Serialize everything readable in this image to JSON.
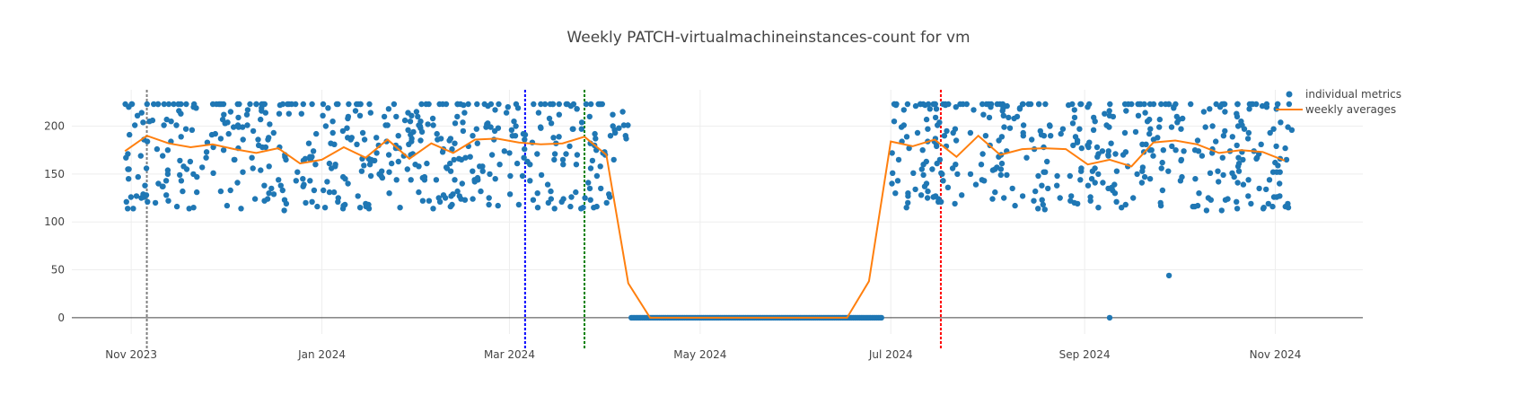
{
  "chart_data": {
    "type": "scatter",
    "title": "Weekly PATCH-virtualmachineinstances-count for vm",
    "xlabel": "",
    "ylabel": "",
    "x_range": [
      "2023-10-13",
      "2024-11-29"
    ],
    "ylim": [
      -17,
      238
    ],
    "y_ticks": [
      0,
      50,
      100,
      150,
      200
    ],
    "x_ticks": [
      {
        "date": "2023-11-01",
        "label": "Nov 2023"
      },
      {
        "date": "2024-01-01",
        "label": "Jan 2024"
      },
      {
        "date": "2024-03-01",
        "label": "Mar 2024"
      },
      {
        "date": "2024-05-01",
        "label": "May 2024"
      },
      {
        "date": "2024-07-01",
        "label": "Jul 2024"
      },
      {
        "date": "2024-09-01",
        "label": "Sep 2024"
      },
      {
        "date": "2024-11-01",
        "label": "Nov 2024"
      }
    ],
    "grid": true,
    "legend_position": "top-right",
    "series": [
      {
        "name": "individual metrics",
        "mode": "markers",
        "color": "#1f77b4",
        "active_ranges": [
          {
            "start": "2023-10-30",
            "end": "2024-04-08",
            "min": 112,
            "max": 223
          },
          {
            "start": "2024-07-01",
            "end": "2024-11-07",
            "min": 112,
            "max": 223
          }
        ],
        "zero_range": {
          "start": "2024-04-09",
          "end": "2024-06-28",
          "value": 0
        },
        "outliers": [
          {
            "x": "2024-09-09",
            "y": 0
          },
          {
            "x": "2024-09-28",
            "y": 44
          }
        ]
      },
      {
        "name": "weekly averages",
        "mode": "lines",
        "color": "#ff7f0e",
        "x": [
          "2023-10-30",
          "2023-11-06",
          "2023-11-13",
          "2023-11-20",
          "2023-11-27",
          "2023-12-04",
          "2023-12-11",
          "2023-12-18",
          "2023-12-25",
          "2024-01-01",
          "2024-01-08",
          "2024-01-15",
          "2024-01-22",
          "2024-01-29",
          "2024-02-05",
          "2024-02-12",
          "2024-02-19",
          "2024-02-26",
          "2024-03-04",
          "2024-03-11",
          "2024-03-18",
          "2024-03-25",
          "2024-04-01",
          "2024-04-08",
          "2024-04-15",
          "2024-04-22",
          "2024-04-29",
          "2024-05-06",
          "2024-05-13",
          "2024-05-20",
          "2024-05-27",
          "2024-06-03",
          "2024-06-10",
          "2024-06-17",
          "2024-06-24",
          "2024-07-01",
          "2024-07-08",
          "2024-07-15",
          "2024-07-22",
          "2024-07-29",
          "2024-08-05",
          "2024-08-12",
          "2024-08-19",
          "2024-08-26",
          "2024-09-02",
          "2024-09-09",
          "2024-09-16",
          "2024-09-23",
          "2024-09-30",
          "2024-10-07",
          "2024-10-14",
          "2024-10-21",
          "2024-10-28",
          "2024-11-04"
        ],
        "y": [
          174,
          190,
          182,
          178,
          181,
          176,
          172,
          177,
          161,
          165,
          178,
          167,
          186,
          166,
          182,
          172,
          186,
          187,
          183,
          181,
          182,
          189,
          170,
          36,
          0,
          0,
          0,
          0,
          0,
          0,
          0,
          0,
          0,
          0,
          38,
          184,
          179,
          186,
          168,
          190,
          170,
          176,
          177,
          176,
          160,
          165,
          158,
          183,
          185,
          181,
          172,
          175,
          173,
          164
        ]
      }
    ],
    "vertical_lines": [
      {
        "x": "2023-11-06",
        "color": "#808080"
      },
      {
        "x": "2024-03-06",
        "color": "#0000ff"
      },
      {
        "x": "2024-03-25",
        "color": "#008000"
      },
      {
        "x": "2024-07-17",
        "color": "#ff0000"
      }
    ]
  }
}
